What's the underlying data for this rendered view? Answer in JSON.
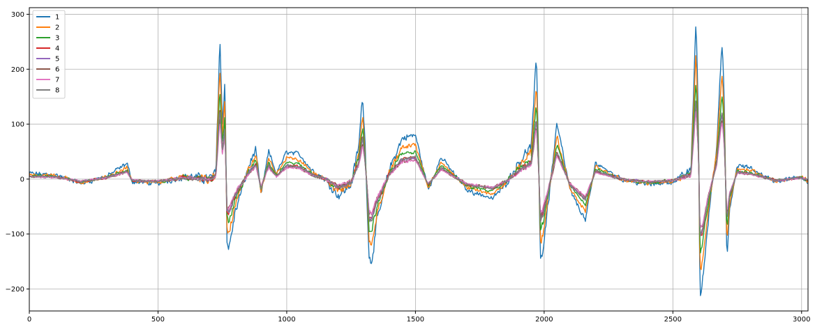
{
  "chart_data": {
    "type": "line",
    "title": "",
    "xlabel": "",
    "ylabel": "",
    "xlim": [
      0,
      3025
    ],
    "ylim": [
      -240,
      312
    ],
    "xticks": [
      0,
      500,
      1000,
      1500,
      2000,
      2500,
      3000
    ],
    "yticks": [
      -200,
      -100,
      0,
      100,
      200,
      300
    ],
    "grid": true,
    "legend_position": "top-left",
    "series": [
      {
        "name": "1",
        "color": "#1f77b4",
        "scale": 1.0
      },
      {
        "name": "2",
        "color": "#ff7f0e",
        "scale": 0.78
      },
      {
        "name": "3",
        "color": "#2ca02c",
        "scale": 0.62
      },
      {
        "name": "4",
        "color": "#d62728",
        "scale": 0.5
      },
      {
        "name": "5",
        "color": "#9467bd",
        "scale": 0.48
      },
      {
        "name": "6",
        "color": "#8c564b",
        "scale": 0.44
      },
      {
        "name": "7",
        "color": "#e377c2",
        "scale": 0.42
      },
      {
        "name": "8",
        "color": "#7f7f7f",
        "scale": 0.5
      }
    ],
    "key_points": [
      [
        0,
        10
      ],
      [
        100,
        8
      ],
      [
        200,
        -8
      ],
      [
        300,
        5
      ],
      [
        380,
        28
      ],
      [
        400,
        -5
      ],
      [
        500,
        -8
      ],
      [
        600,
        5
      ],
      [
        700,
        0
      ],
      [
        725,
        10
      ],
      [
        740,
        260
      ],
      [
        750,
        100
      ],
      [
        760,
        185
      ],
      [
        768,
        -110
      ],
      [
        775,
        -128
      ],
      [
        800,
        -60
      ],
      [
        850,
        20
      ],
      [
        880,
        55
      ],
      [
        900,
        -30
      ],
      [
        930,
        50
      ],
      [
        960,
        10
      ],
      [
        1000,
        50
      ],
      [
        1050,
        45
      ],
      [
        1100,
        15
      ],
      [
        1150,
        0
      ],
      [
        1200,
        -30
      ],
      [
        1250,
        -10
      ],
      [
        1280,
        60
      ],
      [
        1295,
        155
      ],
      [
        1305,
        60
      ],
      [
        1320,
        -145
      ],
      [
        1330,
        -148
      ],
      [
        1350,
        -80
      ],
      [
        1400,
        20
      ],
      [
        1450,
        75
      ],
      [
        1500,
        80
      ],
      [
        1550,
        -20
      ],
      [
        1600,
        40
      ],
      [
        1650,
        10
      ],
      [
        1700,
        -20
      ],
      [
        1800,
        -35
      ],
      [
        1850,
        -10
      ],
      [
        1900,
        30
      ],
      [
        1950,
        60
      ],
      [
        1970,
        220
      ],
      [
        1978,
        60
      ],
      [
        1985,
        -148
      ],
      [
        1995,
        -130
      ],
      [
        2050,
        100
      ],
      [
        2100,
        -20
      ],
      [
        2160,
        -75
      ],
      [
        2200,
        30
      ],
      [
        2300,
        0
      ],
      [
        2400,
        -10
      ],
      [
        2500,
        -5
      ],
      [
        2570,
        15
      ],
      [
        2590,
        295
      ],
      [
        2600,
        80
      ],
      [
        2605,
        -215
      ],
      [
        2615,
        -190
      ],
      [
        2640,
        -60
      ],
      [
        2670,
        60
      ],
      [
        2690,
        245
      ],
      [
        2695,
        210
      ],
      [
        2700,
        130
      ],
      [
        2710,
        -150
      ],
      [
        2720,
        -60
      ],
      [
        2750,
        25
      ],
      [
        2800,
        20
      ],
      [
        2900,
        -5
      ],
      [
        3000,
        5
      ],
      [
        3025,
        -5
      ]
    ]
  }
}
